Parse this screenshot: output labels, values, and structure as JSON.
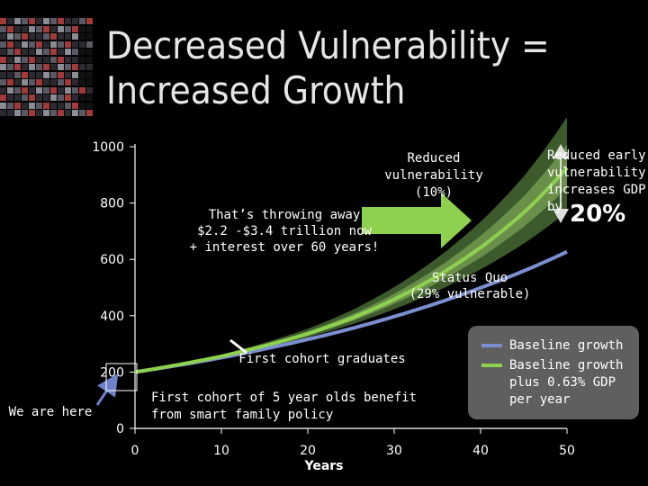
{
  "slide": {
    "title_line1": "Decreased Vulnerability =",
    "title_line2": "Increased Growth"
  },
  "chart_data": {
    "type": "line",
    "title": "Decreased Vulnerability = Increased Growth",
    "xlabel": "Years",
    "ylabel": "",
    "xlim": [
      0,
      50
    ],
    "ylim": [
      0,
      1000
    ],
    "x_ticks": [
      0,
      10,
      20,
      30,
      40,
      50
    ],
    "y_tick_labels": [
      "0",
      "200",
      "400",
      "600",
      "800",
      "1000"
    ],
    "y_tick_values": [
      0,
      200,
      400,
      600,
      800,
      1000
    ],
    "x": [
      0,
      5,
      10,
      15,
      20,
      25,
      30,
      35,
      40,
      45,
      50
    ],
    "series": [
      {
        "name": "Baseline growth",
        "color": "#7b8fd0",
        "values": [
          200,
          224,
          251,
          282,
          316,
          354,
          397,
          445,
          499,
          559,
          627
        ]
      },
      {
        "name": "Baseline growth plus 0.63% GDP per year",
        "color": "#8ed14f",
        "values": [
          200,
          226,
          256,
          293,
          336,
          390,
          458,
          541,
          642,
          766,
          925
        ]
      }
    ],
    "band_colors": {
      "outer": "#3d5a2c",
      "inner": "#6a8f4a"
    },
    "legend_position": "bottom-right",
    "legend": [
      "Baseline growth",
      "Baseline growth\nplus 0.63% GDP\nper year"
    ],
    "annotations": {
      "reduced_vulnerability": "Reduced\nvulnerability\n(10%)",
      "reduced_early": "Reduced early\nvulnerability\nincreases GDP\nby",
      "reduced_early_value": "20%",
      "throwing_away": "That’s throwing away\n$2.2 -$3.4 trillion now\n+ interest over 60 years!",
      "status_quo": "Status Quo\n(29% vulnerable)",
      "first_cohort_graduates": "First cohort graduates",
      "first_cohort_benefit": "First cohort of 5 year olds benefit\nfrom smart family policy",
      "we_are_here": "We are here"
    },
    "arrow_color": "#8ed14f",
    "pointer_color": "#6d80c8"
  }
}
